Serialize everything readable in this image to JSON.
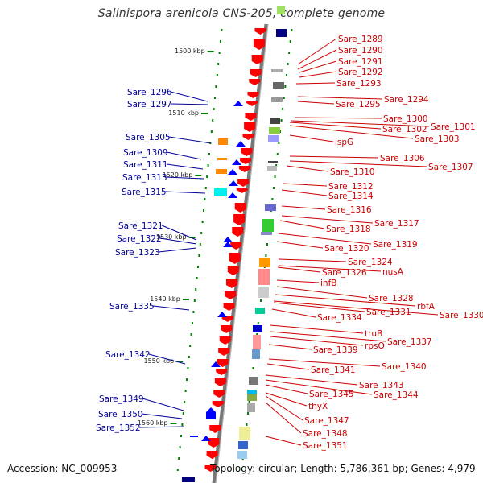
{
  "title": "Salinispora arenicola CNS-205, complete genome",
  "footer": {
    "accession": "Accession: NC_009953",
    "info": "Topology: circular; Length: 5,786,361 bp; Genes: 4,979"
  },
  "colors": {
    "forward_gene": "#ff0000",
    "reverse_gene": "#0000ff",
    "backbone": "#888888",
    "scale_tick": "#008000",
    "left_label": "#000099",
    "right_label": "#cc0000"
  },
  "scale_labels": [
    "1500 kbp",
    "1510 kbp",
    "1520 kbp",
    "1530 kbp",
    "1540 kbp",
    "1550 kbp",
    "1560 kbp"
  ],
  "left_genes": [
    "Sare_1296",
    "Sare_1297",
    "Sare_1305",
    "Sare_1309",
    "Sare_1311",
    "Sare_1313",
    "Sare_1315",
    "Sare_1321",
    "Sare_1322",
    "Sare_1323",
    "Sare_1335",
    "Sare_1342",
    "Sare_1349",
    "Sare_1350",
    "Sare_1352"
  ],
  "right_genes": [
    "Sare_1289",
    "Sare_1290",
    "Sare_1291",
    "Sare_1292",
    "Sare_1293",
    "Sare_1294",
    "Sare_1295",
    "Sare_1300",
    "Sare_1301",
    "Sare_1302",
    "Sare_1303",
    "ispG",
    "Sare_1306",
    "Sare_1307",
    "Sare_1310",
    "Sare_1312",
    "Sare_1314",
    "Sare_1316",
    "Sare_1317",
    "Sare_1318",
    "Sare_1319",
    "Sare_1320",
    "Sare_1324",
    "nusA",
    "Sare_1326",
    "infB",
    "Sare_1328",
    "rbfA",
    "Sare_1330",
    "Sare_1331",
    "Sare_1334",
    "truB",
    "Sare_1337",
    "rpsO",
    "Sare_1339",
    "Sare_1340",
    "Sare_1341",
    "Sare_1343",
    "Sare_1344",
    "Sare_1345",
    "thyX",
    "Sare_1347",
    "Sare_1348",
    "Sare_1351"
  ]
}
